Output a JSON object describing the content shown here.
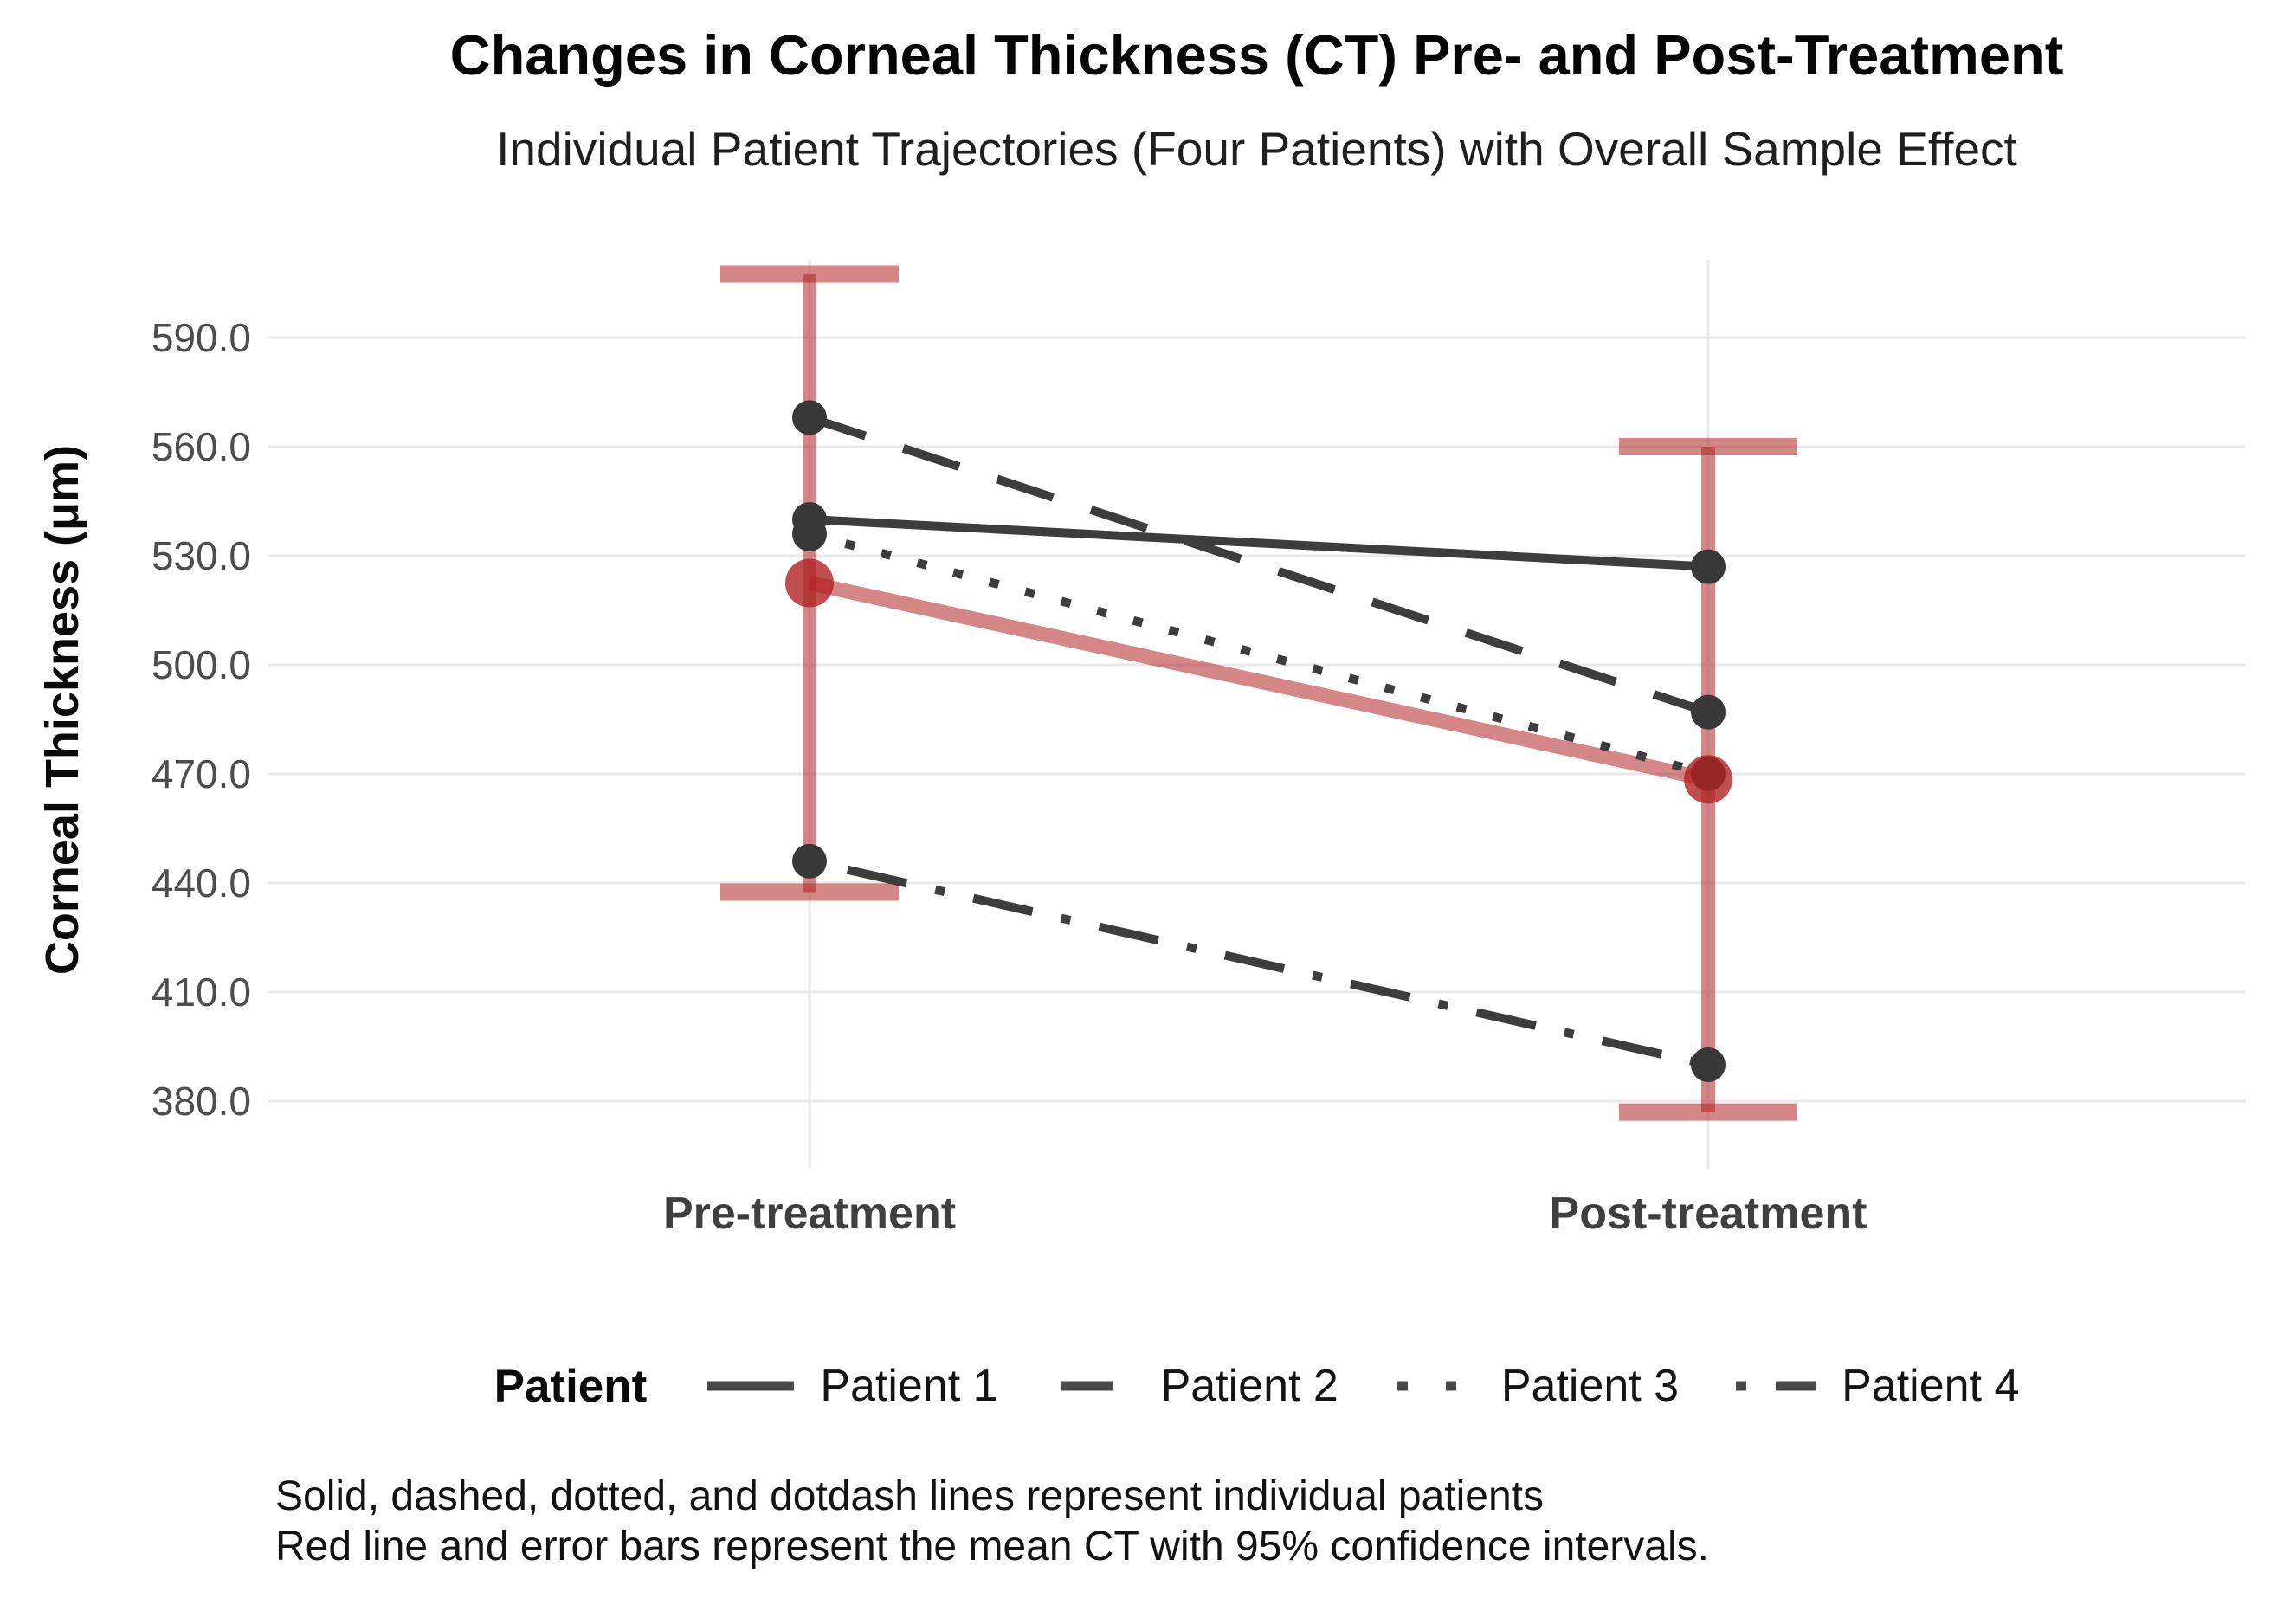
{
  "title": "Changes in Corneal Thickness (CT) Pre- and Post-Treatment",
  "subtitle": "Individual Patient Trajectories (Four Patients) with Overall Sample Effect",
  "y_axis": {
    "label": "Corneal Thickness (μm)"
  },
  "caption": {
    "line1": "Solid, dashed, dotted, and dotdash lines represent individual patients",
    "line2": "Red line and error bars represent the mean CT with 95% confidence intervals."
  },
  "legend": {
    "title": "Patient"
  },
  "colors": {
    "patient_line": "#3D3D3D",
    "patient_point": "#383838",
    "mean_red": "#B22222",
    "gridline": "#E8E8E8",
    "tick_text": "#4D4D4D",
    "axis_text": "#3F3F3F",
    "legend_key": "#4A4A4A"
  },
  "chart_data": {
    "type": "line",
    "categories": [
      "Pre-treatment",
      "Post-treatment"
    ],
    "series": [
      {
        "name": "Patient 1",
        "linetype": "solid",
        "values": [
          540,
          527
        ]
      },
      {
        "name": "Patient 2",
        "linetype": "dashed",
        "values": [
          568,
          487
        ]
      },
      {
        "name": "Patient 3",
        "linetype": "dotted",
        "values": [
          536,
          470
        ]
      },
      {
        "name": "Patient 4",
        "linetype": "dotdash",
        "values": [
          446,
          390
        ]
      }
    ],
    "mean_series": {
      "name": "Mean CT",
      "values": [
        522.5,
        468.5
      ],
      "ci_lower": [
        437.5,
        377.0
      ],
      "ci_upper": [
        607.5,
        560.0
      ]
    },
    "yticks": [
      590,
      560,
      530,
      500,
      470,
      440,
      410,
      380
    ],
    "ytick_labels": [
      "590.0",
      "560.0",
      "530.0",
      "500.0",
      "470.0",
      "440.0",
      "410.0",
      "380.0"
    ],
    "ylim": [
      368,
      615
    ],
    "ylabel": "Corneal Thickness (μm)",
    "xlabel": "",
    "grid": true,
    "legend_position": "bottom"
  }
}
